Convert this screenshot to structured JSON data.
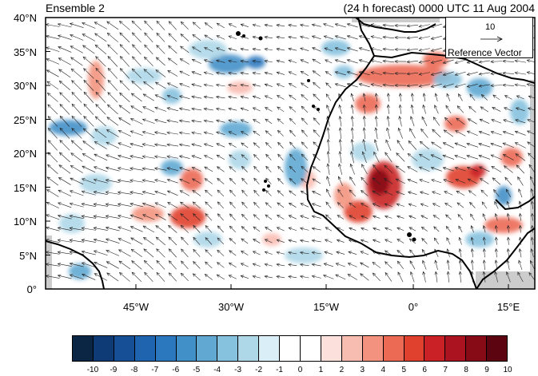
{
  "header": {
    "left_title": "Ensemble 2",
    "right_title": "(24 h forecast) 0000 UTC 11 Aug 2004"
  },
  "map": {
    "lat_labels": [
      "40°N",
      "35°N",
      "30°N",
      "25°N",
      "20°N",
      "15°N",
      "10°N",
      "5°N",
      "0°"
    ],
    "lon_labels": [
      "45°W",
      "30°W",
      "15°W",
      "0°",
      "15°E"
    ],
    "lat_range": [
      0,
      40
    ],
    "lon_range": [
      -58,
      19
    ]
  },
  "reference_vector": {
    "magnitude": "10",
    "label": "Reference Vector"
  },
  "colorbar": {
    "labels": [
      "-10",
      "-9",
      "-8",
      "-7",
      "-6",
      "-5",
      "-4",
      "-3",
      "-2",
      "-1",
      "0",
      "1",
      "2",
      "3",
      "4",
      "5",
      "6",
      "7",
      "8",
      "9",
      "10"
    ],
    "colors": [
      "#0b2545",
      "#0e3a75",
      "#164f96",
      "#1f64ae",
      "#2b78bf",
      "#4290c8",
      "#61a8d3",
      "#86c1de",
      "#aed7e8",
      "#d9eef6",
      "#ffffff",
      "#ffffff",
      "#fbe0dc",
      "#f8bdb1",
      "#f3937f",
      "#ec6a54",
      "#e0412f",
      "#c92126",
      "#ab1320",
      "#860b17",
      "#5c0510"
    ]
  },
  "colors": {
    "coast": "#000000",
    "missing": "#cccccc"
  }
}
